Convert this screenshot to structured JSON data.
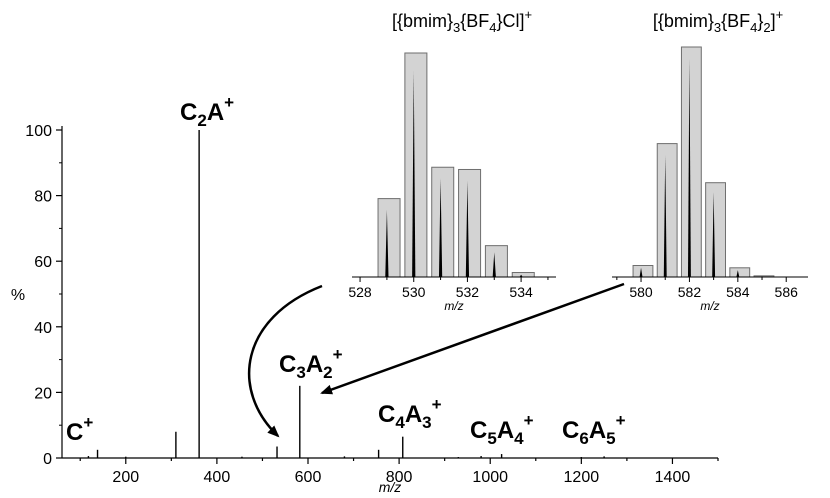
{
  "chart_data": [
    {
      "type": "bar",
      "xlabel": "m/z",
      "ylabel": "%",
      "xlim": [
        60,
        1500
      ],
      "ylim": [
        0,
        100
      ],
      "xticks": [
        200,
        400,
        600,
        800,
        1000,
        1200,
        1400
      ],
      "yticks": [
        0,
        20,
        40,
        60,
        80,
        100
      ],
      "peaks": {
        "x": [
          118,
          138,
          200,
          310,
          361,
          455,
          532,
          582,
          680,
          755,
          808,
          930,
          980,
          1025,
          1200,
          1250
        ],
        "y": [
          0.6,
          2.5,
          0.4,
          8,
          100,
          0.4,
          3.5,
          22,
          0.5,
          2.5,
          6.5,
          0.3,
          0.6,
          1.2,
          0.3,
          0.5
        ]
      },
      "annotations": [
        {
          "label_main": "C",
          "sub1": "",
          "mid": "",
          "sub2": "",
          "sup": "+"
        },
        {
          "label_main": "C",
          "sub1": "2",
          "mid": "A",
          "sub2": "",
          "sup": "+"
        },
        {
          "label_main": "C",
          "sub1": "3",
          "mid": "A",
          "sub2": "2",
          "sup": "+"
        },
        {
          "label_main": "C",
          "sub1": "4",
          "mid": "A",
          "sub2": "3",
          "sup": "+"
        },
        {
          "label_main": "C",
          "sub1": "5",
          "mid": "A",
          "sub2": "4",
          "sup": "+"
        },
        {
          "label_main": "C",
          "sub1": "6",
          "mid": "A",
          "sub2": "5",
          "sup": "+"
        }
      ]
    },
    {
      "type": "bar",
      "title_parts": [
        "[{bmim}",
        "3",
        "{BF",
        "4",
        "}Cl]",
        "+"
      ],
      "xlabel": "m/z",
      "xlim": [
        527.7,
        535.3
      ],
      "xticks": [
        528,
        530,
        532,
        534
      ],
      "bars": {
        "x": [
          529,
          530,
          531,
          532,
          533,
          534
        ],
        "y": [
          35,
          100,
          49,
          48,
          14,
          2
        ]
      },
      "peaks": {
        "x": [
          529,
          530,
          531,
          532,
          533,
          534
        ],
        "y": [
          30,
          92,
          44,
          43,
          11,
          1
        ]
      }
    },
    {
      "type": "bar",
      "title_parts": [
        "[{bmim}",
        "3",
        "{BF",
        "4",
        "}",
        "2",
        "]",
        "+"
      ],
      "xlabel": "m/z",
      "xlim": [
        578.8,
        586.9
      ],
      "xticks": [
        580,
        582,
        584,
        586
      ],
      "bars": {
        "x": [
          580,
          581,
          582,
          583,
          584,
          585
        ],
        "y": [
          5,
          58,
          100,
          41,
          4,
          0.5
        ]
      },
      "peaks": {
        "x": [
          580,
          581,
          582,
          583,
          584,
          585
        ],
        "y": [
          4,
          53,
          95,
          37,
          3,
          0.3
        ]
      }
    }
  ]
}
